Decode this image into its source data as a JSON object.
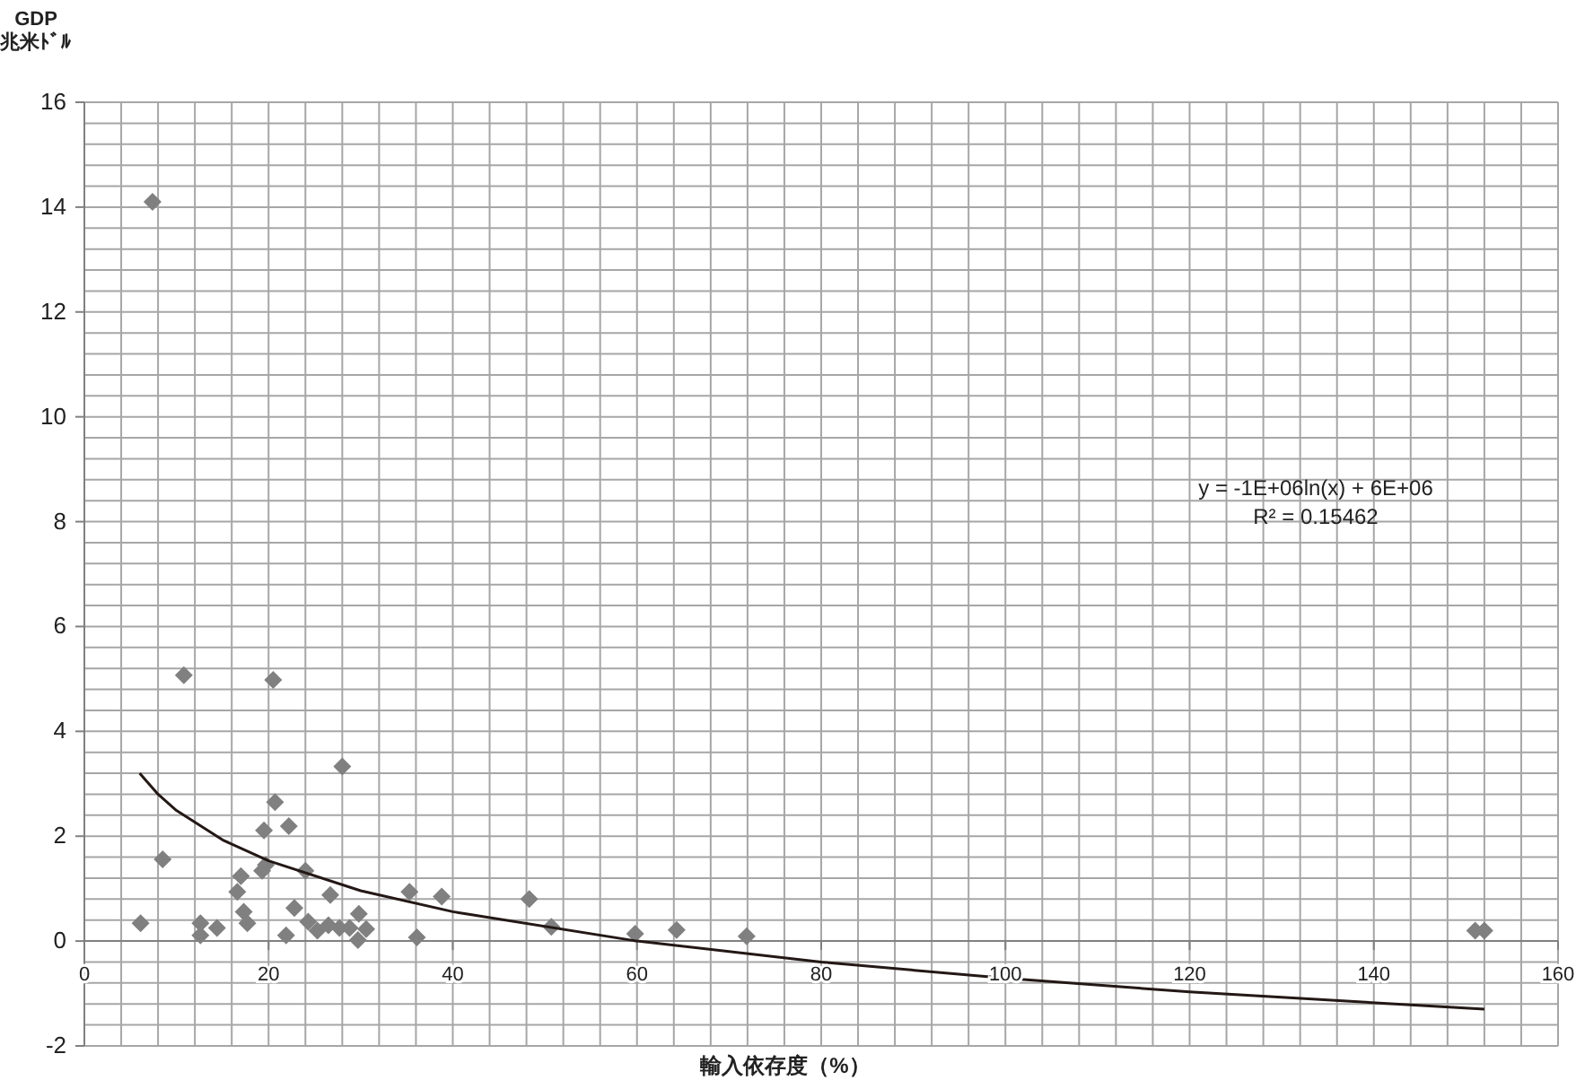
{
  "chart_data": {
    "type": "scatter",
    "ylabel": "GDP 兆米ﾄﾞﾙ",
    "xlabel": "輸入依存度（%）",
    "grid": true,
    "xlim": [
      0,
      160
    ],
    "xticks": [
      0,
      20,
      40,
      60,
      80,
      100,
      120,
      140,
      160
    ],
    "ylim": [
      -2,
      16
    ],
    "yticks": [
      -2,
      0,
      2,
      4,
      6,
      8,
      10,
      12,
      14,
      16
    ],
    "annotations": [
      "y = -1E+06ln(x) + 6E+06",
      "R² = 0.15462"
    ],
    "series": [
      {
        "marker": "diamond",
        "color": "#808080",
        "x": [
          7.4,
          10.8,
          20.5,
          28.0,
          20.7,
          19.5,
          22.2,
          8.5,
          17.0,
          19.3,
          19.7,
          24.0,
          16.6,
          26.7,
          35.3,
          38.8,
          22.8,
          17.3,
          17.7,
          6.1,
          12.6,
          12.6,
          14.4,
          21.9,
          24.3,
          25.3,
          26.5,
          27.7,
          28.8,
          29.8,
          29.7,
          30.6,
          36.1,
          48.3,
          50.7,
          59.8,
          64.3,
          71.9,
          151.0,
          152.0
        ],
        "values": [
          14.1,
          5.07,
          4.98,
          3.33,
          2.65,
          2.11,
          2.19,
          1.56,
          1.24,
          1.34,
          1.45,
          1.34,
          0.94,
          0.88,
          0.94,
          0.85,
          0.63,
          0.56,
          0.34,
          0.34,
          0.34,
          0.11,
          0.25,
          0.11,
          0.37,
          0.2,
          0.3,
          0.25,
          0.25,
          0.52,
          0.02,
          0.23,
          0.07,
          0.8,
          0.27,
          0.14,
          0.21,
          0.09,
          0.2,
          0.2
        ]
      },
      {
        "type": "line",
        "color": "#231815",
        "x": [
          6,
          8,
          10,
          15,
          20,
          30,
          40,
          60,
          80,
          100,
          120,
          152
        ],
        "values": [
          3.2,
          2.8,
          2.49,
          1.93,
          1.53,
          0.96,
          0.56,
          0.0,
          -0.4,
          -0.71,
          -0.97,
          -1.3
        ]
      }
    ]
  }
}
